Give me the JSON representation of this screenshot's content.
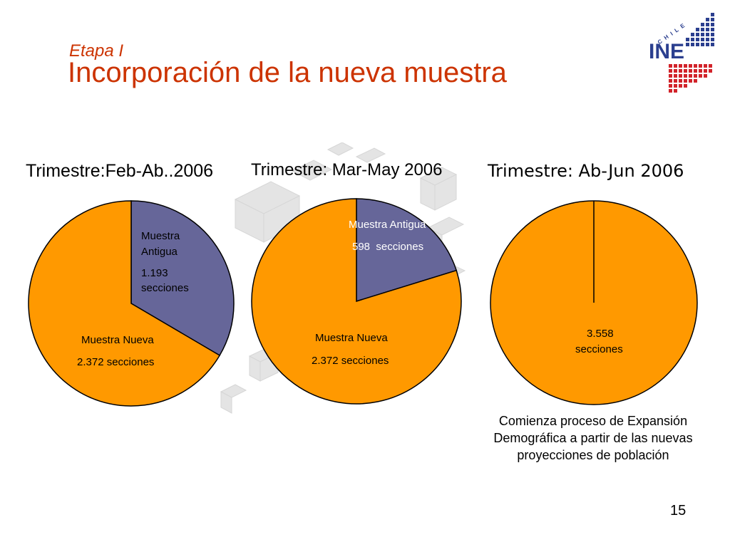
{
  "header": {
    "subtitle": "Etapa I",
    "title": "Incorporación de la nueva muestra"
  },
  "logo": {
    "top_text": "CHILE",
    "main_text": "INE"
  },
  "colors": {
    "nueva": "#ff9900",
    "antigua": "#666699",
    "title": "#cc3300",
    "logo_blue": "#2b3f8f",
    "logo_red": "#d2232a"
  },
  "chart_data": [
    {
      "type": "pie",
      "title": "Trimestre:Feb-Ab..2006",
      "slices": [
        {
          "name": "Muestra Antigua",
          "value": 1193,
          "label_line1": "Muestra",
          "label_line2": "Antigua",
          "value_line1": "1.193",
          "value_line2": "secciones"
        },
        {
          "name": "Muestra Nueva",
          "value": 2372,
          "label_line1": "Muestra Nueva",
          "value_line1": "2.372 secciones"
        }
      ]
    },
    {
      "type": "pie",
      "title": "Trimestre: Mar-May 2006",
      "slices": [
        {
          "name": "Muestra Antigua",
          "value": 598,
          "label_line1": "Muestra Antigua",
          "value_line1": "598  secciones"
        },
        {
          "name": "Muestra Nueva",
          "value": 2372,
          "label_line1": "Muestra Nueva",
          "value_line1": "2.372 secciones"
        }
      ]
    },
    {
      "type": "pie",
      "title": "Trimestre: Ab-Jun 2006",
      "slices": [
        {
          "name": "Muestra Nueva",
          "value": 3558,
          "value_line1": "3.558",
          "value_line2": "secciones"
        }
      ]
    }
  ],
  "note": "Comienza proceso de Expansión Demográfica a partir de las nuevas proyecciones de población",
  "page_number": "15"
}
